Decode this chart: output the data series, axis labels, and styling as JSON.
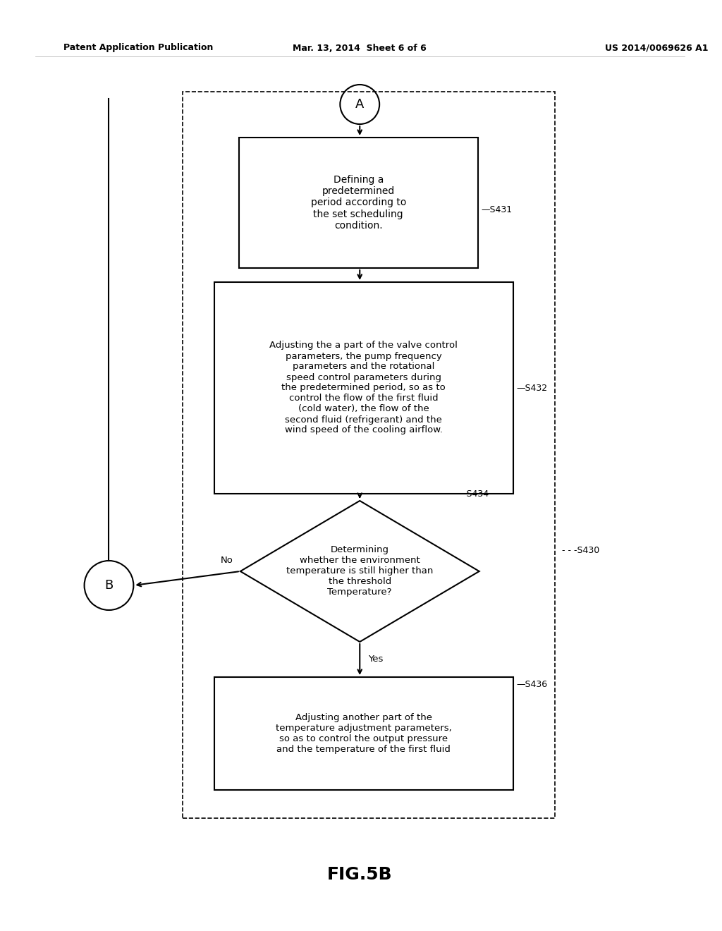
{
  "bg_color": "#ffffff",
  "header_left": "Patent Application Publication",
  "header_mid": "Mar. 13, 2014  Sheet 6 of 6",
  "header_right": "US 2014/0069626 A1",
  "figure_label": "FIG.5B",
  "circle_A_label": "A",
  "circle_B_label": "B",
  "box1_text": "Defining a\npredetermined\nperiod according to\nthe set scheduling\ncondition.",
  "box1_label": "S431",
  "box2_text": "Adjusting the a part of the valve control\nparameters, the pump frequency\nparameters and the rotational\nspeed control parameters during\nthe predetermined period, so as to\ncontrol the flow of the first fluid\n(cold water), the flow of the\nsecond fluid (refrigerant) and the\nwind speed of the cooling airflow.",
  "box2_label": "S432",
  "diamond_text": "Determining\nwhether the environment\ntemperature is still higher than\nthe threshold\nTemperature?",
  "diamond_label": "S434",
  "box3_text": "Adjusting another part of the\ntemperature adjustment parameters,\nso as to control the output pressure\nand the temperature of the first fluid",
  "box3_label": "S436",
  "outer_label": "S430",
  "no_label": "No",
  "yes_label": "Yes",
  "text_color": "#000000",
  "line_color": "#000000",
  "dashed_color": "#000000",
  "font_family": "DejaVu Sans"
}
